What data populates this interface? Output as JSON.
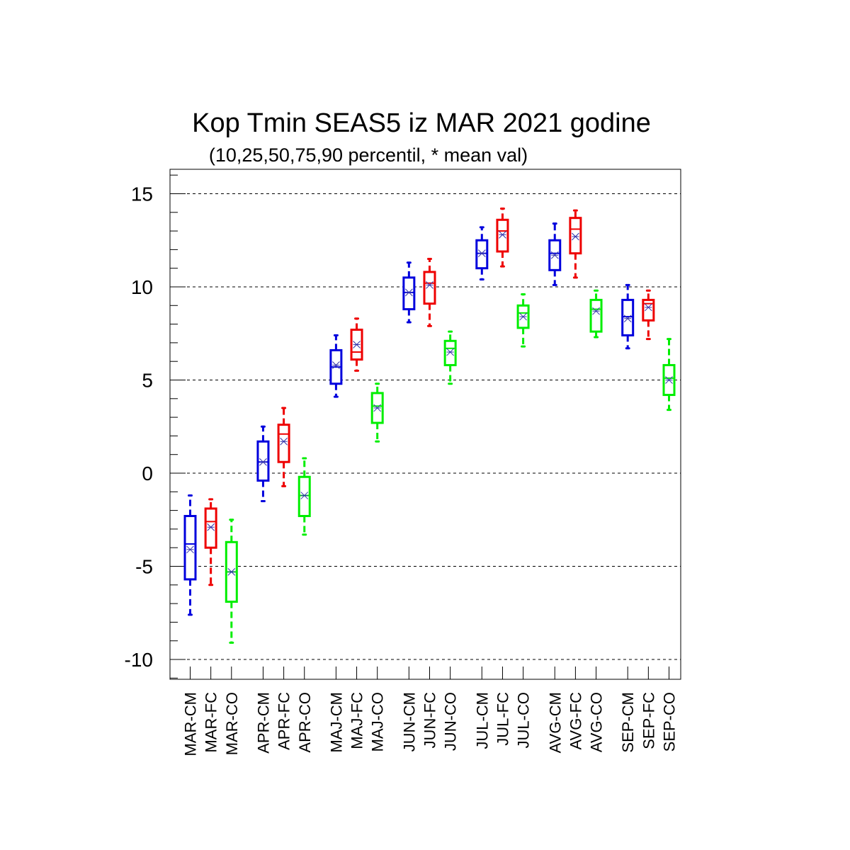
{
  "title": "Kop Tmin SEAS5 iz MAR 2021 godine",
  "subtitle": "(10,25,50,75,90 percentil, * mean val)",
  "chart_data": {
    "type": "boxplot",
    "title": "Kop Tmin SEAS5 iz MAR 2021 godine",
    "subtitle": "(10,25,50,75,90 percentil, * mean val)",
    "ylim": [
      -11.1,
      16.3
    ],
    "yticks": [
      -10,
      -5,
      0,
      5,
      10,
      15
    ],
    "ytick_labels": [
      "-10",
      "-5",
      "0",
      "5",
      "10",
      "15"
    ],
    "grid": "horizontal dashed",
    "colors": {
      "CM": "#0000dd",
      "FC": "#ee0000",
      "CO": "#00ee00",
      "mean": "#3333aa"
    },
    "boxes": [
      {
        "label": "MAR-CM",
        "kind": "CM",
        "p10": -7.6,
        "p25": -5.7,
        "median": -3.8,
        "p75": -2.3,
        "p90": -1.2,
        "mean": -4.1
      },
      {
        "label": "MAR-FC",
        "kind": "FC",
        "p10": -6.0,
        "p25": -4.0,
        "median": -2.6,
        "p75": -1.9,
        "p90": -1.4,
        "mean": -2.9
      },
      {
        "label": "MAR-CO",
        "kind": "CO",
        "p10": -9.1,
        "p25": -6.9,
        "median": -5.3,
        "p75": -3.7,
        "p90": -2.5,
        "mean": -5.3
      },
      {
        "label": "APR-CM",
        "kind": "CM",
        "p10": -1.5,
        "p25": -0.4,
        "median": 0.6,
        "p75": 1.7,
        "p90": 2.5,
        "mean": 0.6
      },
      {
        "label": "APR-FC",
        "kind": "FC",
        "p10": -0.7,
        "p25": 0.6,
        "median": 2.1,
        "p75": 2.6,
        "p90": 3.5,
        "mean": 1.7
      },
      {
        "label": "APR-CO",
        "kind": "CO",
        "p10": -3.3,
        "p25": -2.3,
        "median": -1.2,
        "p75": -0.2,
        "p90": 0.8,
        "mean": -1.2
      },
      {
        "label": "MAJ-CM",
        "kind": "CM",
        "p10": 4.1,
        "p25": 4.8,
        "median": 5.7,
        "p75": 6.6,
        "p90": 7.4,
        "mean": 5.8
      },
      {
        "label": "MAJ-FC",
        "kind": "FC",
        "p10": 5.5,
        "p25": 6.1,
        "median": 6.5,
        "p75": 7.7,
        "p90": 8.3,
        "mean": 6.9
      },
      {
        "label": "MAJ-CO",
        "kind": "CO",
        "p10": 1.7,
        "p25": 2.7,
        "median": 3.6,
        "p75": 4.3,
        "p90": 4.8,
        "mean": 3.5
      },
      {
        "label": "JUN-CM",
        "kind": "CM",
        "p10": 8.1,
        "p25": 8.8,
        "median": 9.7,
        "p75": 10.5,
        "p90": 11.3,
        "mean": 9.7
      },
      {
        "label": "JUN-FC",
        "kind": "FC",
        "p10": 7.9,
        "p25": 9.1,
        "median": 10.2,
        "p75": 10.8,
        "p90": 11.5,
        "mean": 10.1
      },
      {
        "label": "JUN-CO",
        "kind": "CO",
        "p10": 4.8,
        "p25": 5.8,
        "median": 6.7,
        "p75": 7.1,
        "p90": 7.6,
        "mean": 6.5
      },
      {
        "label": "JUL-CM",
        "kind": "CM",
        "p10": 10.4,
        "p25": 11.0,
        "median": 11.8,
        "p75": 12.5,
        "p90": 13.2,
        "mean": 11.8
      },
      {
        "label": "JUL-FC",
        "kind": "FC",
        "p10": 11.1,
        "p25": 11.9,
        "median": 13.0,
        "p75": 13.6,
        "p90": 14.2,
        "mean": 12.8
      },
      {
        "label": "JUL-CO",
        "kind": "CO",
        "p10": 6.8,
        "p25": 7.8,
        "median": 8.6,
        "p75": 9.0,
        "p90": 9.6,
        "mean": 8.4
      },
      {
        "label": "AVG-CM",
        "kind": "CM",
        "p10": 10.1,
        "p25": 10.9,
        "median": 11.8,
        "p75": 12.5,
        "p90": 13.4,
        "mean": 11.7
      },
      {
        "label": "AVG-FC",
        "kind": "FC",
        "p10": 10.5,
        "p25": 11.8,
        "median": 13.1,
        "p75": 13.7,
        "p90": 14.1,
        "mean": 12.7
      },
      {
        "label": "AVG-CO",
        "kind": "CO",
        "p10": 7.3,
        "p25": 7.6,
        "median": 8.8,
        "p75": 9.3,
        "p90": 9.8,
        "mean": 8.7
      },
      {
        "label": "SEP-CM",
        "kind": "CM",
        "p10": 6.7,
        "p25": 7.4,
        "median": 8.4,
        "p75": 9.3,
        "p90": 10.1,
        "mean": 8.3
      },
      {
        "label": "SEP-FC",
        "kind": "FC",
        "p10": 7.2,
        "p25": 8.2,
        "median": 9.1,
        "p75": 9.3,
        "p90": 9.8,
        "mean": 8.9
      },
      {
        "label": "SEP-CO",
        "kind": "CO",
        "p10": 3.4,
        "p25": 4.2,
        "median": 5.1,
        "p75": 5.8,
        "p90": 7.2,
        "mean": 5.0
      }
    ]
  }
}
